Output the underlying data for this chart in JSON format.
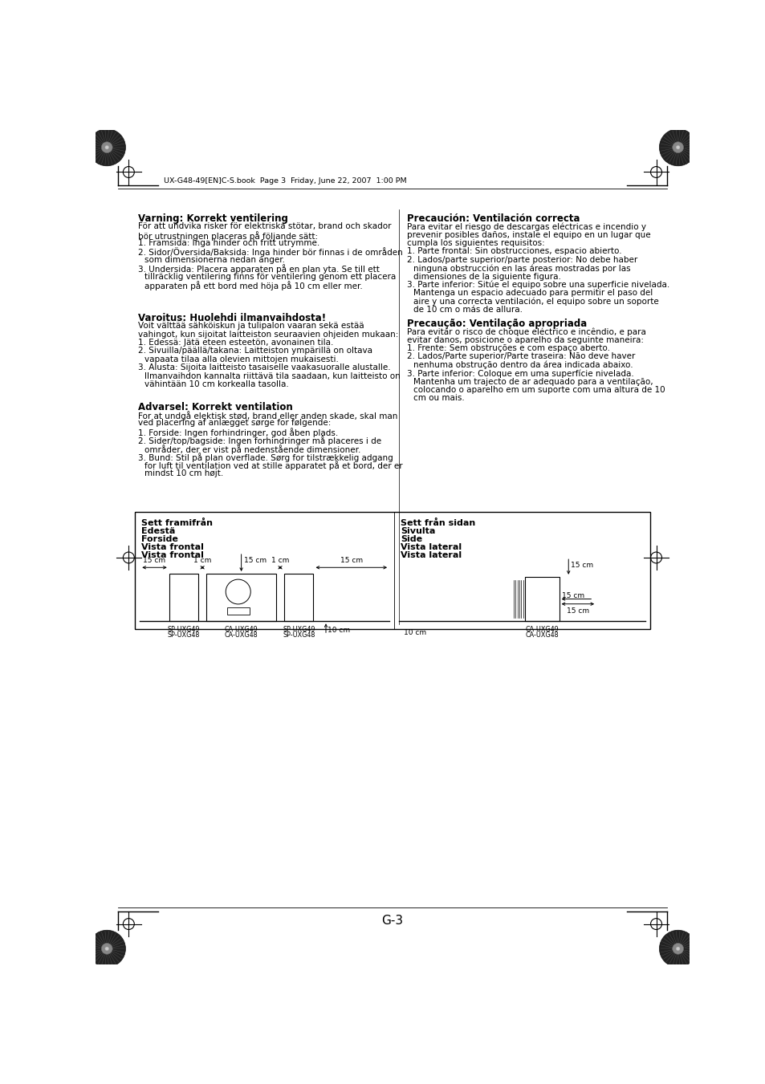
{
  "background_color": "#ffffff",
  "page_header": "UX-G48-49[EN]C-S.book  Page 3  Friday, June 22, 2007  1:00 PM",
  "page_number": "G-3",
  "sections": [
    {
      "title": "Varning: Korrekt ventilering",
      "col": "left",
      "body": [
        "För att undvika risker för elektriska stötar, brand och skador",
        "bör utrustningen placeras på följande sätt:",
        "1. Framsida: Inga hinder och fritt utrymme.",
        "2. Sidor/Översida/Baksida: Inga hinder bör finnas i de områden",
        "    som dimensionerna nedan anger.",
        "3. Undersida: Placera apparaten på en plan yta. Se till ett",
        "    tillräcklig ventilering finns för ventilering genom ett placera",
        "    apparaten på ett bord med höja på 10 cm eller mer."
      ]
    },
    {
      "title": "Varoitus: Huolehdi ilmanvaihdosta!",
      "col": "left",
      "body": [
        "Voit välttää sähköiskun ja tulipalon vaaran sekä estää",
        "vahingot, kun sijoitat laitteiston seuraavien ohjeiden mukaan:",
        "1. Edessä: Jätä eteen esteetön, avonainen tila.",
        "2. Sivuilla/päällä/takana: Laitteiston ympärillä on oltava",
        "    vapaata tilaa alla olevien mittojen mukaisesti.",
        "3. Alusta: Sijoita laitteisto tasaiselle vaakasuoralle alustalle.",
        "    Ilmanvaihdon kannalta riittävä tila saadaan, kun laitteisto on",
        "    vähintään 10 cm korkealla tasolla."
      ]
    },
    {
      "title": "Advarsel: Korrekt ventilation",
      "col": "left",
      "body": [
        "For at undgå elektisk stød, brand eller anden skade, skal man",
        "ved placering af anlægget sørge for følgende:",
        "1. Forside: Ingen forhindringer, god åben plads.",
        "2. Sider/top/bagside: Ingen forhindringer må placeres i de",
        "    områder, der er vist på nedenstående dimensioner.",
        "3. Bund: Stil på plan overflade. Sørg for tilstrækkelig adgang",
        "    for luft til ventilation ved at stille apparatet på et bord, der er",
        "    mindst 10 cm højt."
      ]
    },
    {
      "title": "Precaución: Ventilación correcta",
      "col": "right",
      "body": [
        "Para evitar el riesgo de descargas eléctricas e incendio y",
        "prevenir posibles daños, instale el equipo en un lugar que",
        "cumpla los siguientes requisitos:",
        "1. Parte frontal: Sin obstrucciones, espacio abierto.",
        "2. Lados/parte superior/parte posterior: No debe haber",
        "    ninguna obstrucción en las áreas mostradas por las",
        "    dimensiones de la siguiente figura.",
        "3. Parte inferior: Sitúe el equipo sobre una superficie nivelada.",
        "    Mantenga un espacio adecuado para permitir el paso del",
        "    aire y una correcta ventilación, el equipo sobre un soporte",
        "    de 10 cm o más de allura."
      ]
    },
    {
      "title": "Precaução: Ventilação apropriada",
      "col": "right",
      "body": [
        "Para evitar o risco de choque eléctrico e incêndio, e para",
        "evitar danos, posicione o aparelho da seguinte maneira:",
        "1. Frente: Sem obstruções e com espaço aberto.",
        "2. Lados/Parte superior/Parte traseira: Não deve haver",
        "    nenhuma obstrução dentro da área indicada abaixo.",
        "3. Parte inferior: Coloque em uma superfície nivelada.",
        "    Mantenha um trajecto de ar adequado para a ventilação,",
        "    colocando o aparelho em um suporte com uma altura de 10",
        "    cm ou mais."
      ]
    }
  ],
  "diag_labels_left": [
    "Sett framifrån",
    "Edestä",
    "Forside",
    "Vista frontal",
    "Vista frontal"
  ],
  "diag_labels_right": [
    "Sett från sidan",
    "Sivulta",
    "Side",
    "Vista lateral",
    "Vista lateral"
  ]
}
